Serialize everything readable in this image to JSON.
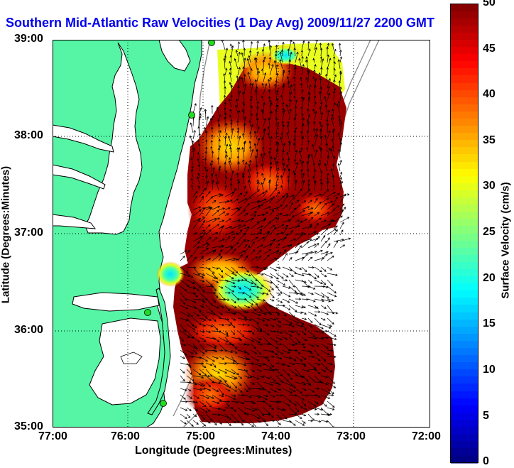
{
  "title": "Southern Mid-Atlantic Raw Velocities (1 Day Avg) 2009/11/27 2200 GMT",
  "x_axis": {
    "label": "Longitude (Degrees:Minutes)",
    "ticks": [
      "77:00",
      "76:00",
      "75:00",
      "74:00",
      "73:00",
      "72:00"
    ]
  },
  "y_axis": {
    "label": "Latitude (Degrees:Minutes)",
    "ticks": [
      "39:00",
      "38:00",
      "37:00",
      "36:00",
      "35:00"
    ]
  },
  "colorbar": {
    "label": "Surface Velocity (cm/s)",
    "ticks": [
      "50",
      "45",
      "40",
      "35",
      "30",
      "25",
      "20",
      "15",
      "10",
      "5",
      "0"
    ],
    "min": 0,
    "max": 50,
    "colormap": "jet"
  },
  "colors": {
    "land": "#55f5a5",
    "water": "#ffffff",
    "title": "#0000ee",
    "coast": "#000000",
    "shelf_contour": "#888888",
    "station": "#22dd22"
  },
  "map_extent": {
    "lon": [
      -77,
      -72
    ],
    "lat": [
      35,
      39
    ]
  },
  "stations": [
    "site-1",
    "site-2",
    "site-3",
    "site-4"
  ]
}
